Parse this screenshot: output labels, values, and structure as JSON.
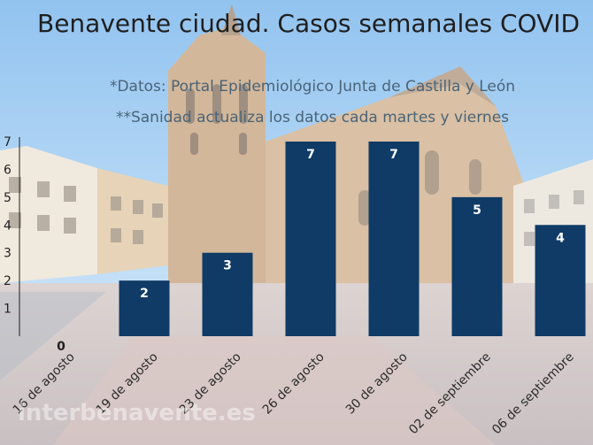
{
  "chart_data": {
    "type": "bar",
    "title": "Benavente ciudad. Casos semanales COVID",
    "notes": [
      "*Datos: Portal Epidemiológico Junta de Castilla y León",
      "**Sanidad actualiza los datos cada martes y viernes"
    ],
    "categories": [
      "16 de agosto",
      "19 de agosto",
      "23 de agosto",
      "26 de agosto",
      "30 de agosto",
      "02 de septiembre",
      "06 de septiembre"
    ],
    "values": [
      0,
      2,
      3,
      7,
      7,
      5,
      4
    ],
    "yticks": [
      1,
      2,
      3,
      4,
      5,
      6,
      7
    ],
    "ylim": [
      0,
      7
    ],
    "grid": false,
    "xlabel": "",
    "ylabel": "",
    "bar_color": "#0f3b66"
  },
  "watermark": "interbenavente.es"
}
